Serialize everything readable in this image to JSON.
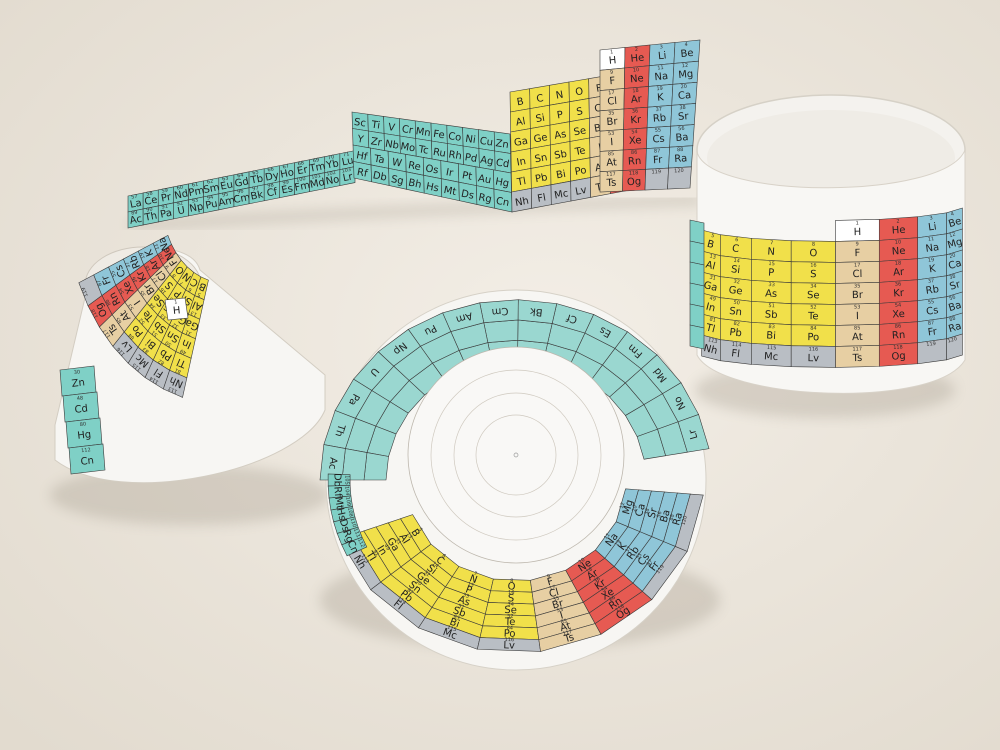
{
  "colors": {
    "table_surface": "#efe9df",
    "paper": "#f7f6f3",
    "paper_shadow": "#cfc8bd",
    "s_block_alkali": "#8fc6d8",
    "noble_red": "#e65a52",
    "noble_pink": "#ee9bb4",
    "p_block_yellow": "#f1e04a",
    "halogen_tan": "#e7cfa3",
    "transition_teal": "#7fd0c6",
    "lanthanide_teal": "#9ad7d0",
    "post_transition_gray": "#b9bec4",
    "hydrogen_white": "#ffffff"
  },
  "strip_top": {
    "lanthanides": [
      {
        "n": "57",
        "s": "La"
      },
      {
        "n": "58",
        "s": "Ce"
      },
      {
        "n": "59",
        "s": "Pr"
      },
      {
        "n": "60",
        "s": "Nd"
      },
      {
        "n": "61",
        "s": "Pm"
      },
      {
        "n": "62",
        "s": "Sm"
      },
      {
        "n": "63",
        "s": "Eu"
      },
      {
        "n": "64",
        "s": "Gd"
      },
      {
        "n": "65",
        "s": "Tb"
      },
      {
        "n": "66",
        "s": "Dy"
      },
      {
        "n": "67",
        "s": "Ho"
      },
      {
        "n": "68",
        "s": "Er"
      },
      {
        "n": "69",
        "s": "Tm"
      },
      {
        "n": "70",
        "s": "Yb"
      },
      {
        "n": "71",
        "s": "Lu"
      }
    ],
    "actinides": [
      {
        "n": "89",
        "s": "Ac"
      },
      {
        "n": "90",
        "s": "Th"
      },
      {
        "n": "91",
        "s": "Pa"
      },
      {
        "n": "92",
        "s": "U"
      },
      {
        "n": "93",
        "s": "Np"
      },
      {
        "n": "94",
        "s": "Pu"
      },
      {
        "n": "95",
        "s": "Am"
      },
      {
        "n": "96",
        "s": "Cm"
      },
      {
        "n": "97",
        "s": "Bk"
      },
      {
        "n": "98",
        "s": "Cf"
      },
      {
        "n": "99",
        "s": "Es"
      },
      {
        "n": "100",
        "s": "Fm"
      },
      {
        "n": "101",
        "s": "Md"
      },
      {
        "n": "102",
        "s": "No"
      },
      {
        "n": "103",
        "s": "Lr"
      }
    ],
    "transition_rows": [
      [
        "Sc",
        "Ti",
        "V",
        "Cr",
        "Mn",
        "Fe",
        "Co",
        "Ni",
        "Cu",
        "Zn"
      ],
      [
        "Y",
        "Zr",
        "Nb",
        "Mo",
        "Tc",
        "Ru",
        "Rh",
        "Pd",
        "Ag",
        "Cd"
      ],
      [
        "Hf",
        "Ta",
        "W",
        "Re",
        "Os",
        "Ir",
        "Pt",
        "Au",
        "Hg"
      ],
      [
        "Rf",
        "Db",
        "Sg",
        "Bh",
        "Hs",
        "Mt",
        "Ds",
        "Rg",
        "Cn"
      ]
    ],
    "p_block_rows": [
      [
        "B",
        "C",
        "N",
        "O",
        "F",
        "Ne"
      ],
      [
        "Al",
        "Si",
        "P",
        "S",
        "Cl",
        "Ar"
      ],
      [
        "Ga",
        "Ge",
        "As",
        "Se",
        "Br",
        "Kr"
      ],
      [
        "In",
        "Sn",
        "Sb",
        "Te",
        "I",
        "Xe"
      ],
      [
        "Tl",
        "Pb",
        "Bi",
        "Po",
        "At",
        "Rn"
      ],
      [
        "Nh",
        "Fl",
        "Mc",
        "Lv",
        "Ts",
        "Og"
      ]
    ],
    "s_block_column": [
      {
        "n": "1",
        "s": "H"
      },
      {
        "n": "2",
        "s": "He"
      },
      {
        "n": "3",
        "s": "Li"
      },
      {
        "n": "4",
        "s": "Be"
      },
      {
        "n": "10",
        "s": "Ne"
      },
      {
        "n": "11",
        "s": "Na"
      },
      {
        "n": "12",
        "s": "Mg"
      },
      {
        "n": "18",
        "s": "Ar"
      },
      {
        "n": "19",
        "s": "K"
      },
      {
        "n": "20",
        "s": "Ca"
      },
      {
        "n": "36",
        "s": "Kr"
      },
      {
        "n": "37",
        "s": "Rb"
      },
      {
        "n": "38",
        "s": "Sr"
      },
      {
        "n": "54",
        "s": "Xe"
      },
      {
        "n": "55",
        "s": "Cs"
      },
      {
        "n": "56",
        "s": "Ba"
      },
      {
        "n": "86",
        "s": "Rn"
      },
      {
        "n": "87",
        "s": "Fr"
      },
      {
        "n": "88",
        "s": "Ra"
      },
      {
        "n": "118",
        "s": "Og"
      },
      {
        "n": "119",
        "s": ""
      },
      {
        "n": "120",
        "s": ""
      }
    ]
  },
  "cylinder_right": {
    "rows": [
      [
        {
          "n": "",
          "s": ""
        },
        {
          "n": "",
          "s": ""
        },
        {
          "n": "",
          "s": ""
        },
        {
          "n": "",
          "s": ""
        },
        {
          "n": "1",
          "s": "H"
        },
        {
          "n": "2",
          "s": "He"
        },
        {
          "n": "3",
          "s": "Li"
        },
        {
          "n": "4",
          "s": "Be"
        }
      ],
      [
        {
          "n": "5",
          "s": "B"
        },
        {
          "n": "6",
          "s": "C"
        },
        {
          "n": "7",
          "s": "N"
        },
        {
          "n": "8",
          "s": "O"
        },
        {
          "n": "9",
          "s": "F"
        },
        {
          "n": "10",
          "s": "Ne"
        },
        {
          "n": "11",
          "s": "Na"
        },
        {
          "n": "12",
          "s": "Mg"
        }
      ],
      [
        {
          "n": "13",
          "s": "Al"
        },
        {
          "n": "14",
          "s": "Si"
        },
        {
          "n": "15",
          "s": "P"
        },
        {
          "n": "16",
          "s": "S"
        },
        {
          "n": "17",
          "s": "Cl"
        },
        {
          "n": "18",
          "s": "Ar"
        },
        {
          "n": "19",
          "s": "K"
        },
        {
          "n": "20",
          "s": "Ca"
        }
      ],
      [
        {
          "n": "31",
          "s": "Ga"
        },
        {
          "n": "32",
          "s": "Ge"
        },
        {
          "n": "33",
          "s": "As"
        },
        {
          "n": "34",
          "s": "Se"
        },
        {
          "n": "35",
          "s": "Br"
        },
        {
          "n": "36",
          "s": "Kr"
        },
        {
          "n": "37",
          "s": "Rb"
        },
        {
          "n": "38",
          "s": "Sr"
        }
      ],
      [
        {
          "n": "49",
          "s": "In"
        },
        {
          "n": "50",
          "s": "Sn"
        },
        {
          "n": "51",
          "s": "Sb"
        },
        {
          "n": "52",
          "s": "Te"
        },
        {
          "n": "53",
          "s": "I"
        },
        {
          "n": "54",
          "s": "Xe"
        },
        {
          "n": "55",
          "s": "Cs"
        },
        {
          "n": "56",
          "s": "Ba"
        }
      ],
      [
        {
          "n": "81",
          "s": "Tl"
        },
        {
          "n": "82",
          "s": "Pb"
        },
        {
          "n": "83",
          "s": "Bi"
        },
        {
          "n": "84",
          "s": "Po"
        },
        {
          "n": "85",
          "s": "At"
        },
        {
          "n": "86",
          "s": "Rn"
        },
        {
          "n": "87",
          "s": "Fr"
        },
        {
          "n": "88",
          "s": "Ra"
        }
      ],
      [
        {
          "n": "113",
          "s": "Nh"
        },
        {
          "n": "114",
          "s": "Fl"
        },
        {
          "n": "115",
          "s": "Mc"
        },
        {
          "n": "116",
          "s": "Lv"
        },
        {
          "n": "117",
          "s": "Ts"
        },
        {
          "n": "118",
          "s": "Og"
        },
        {
          "n": "119",
          "s": ""
        },
        {
          "n": "120",
          "s": ""
        }
      ]
    ]
  },
  "cone_left": {
    "rows": [
      [
        {
          "n": "5",
          "s": "B"
        },
        {
          "n": "6",
          "s": "C"
        },
        {
          "n": "7",
          "s": "N"
        },
        {
          "n": "8",
          "s": "O"
        },
        {
          "n": "9",
          "s": "F"
        },
        {
          "n": "10",
          "s": "Ne"
        },
        {
          "n": "11",
          "s": "Na"
        }
      ],
      [
        {
          "n": "13",
          "s": "Al"
        },
        {
          "n": "14",
          "s": "Si"
        },
        {
          "n": "15",
          "s": "P"
        },
        {
          "n": "16",
          "s": "S"
        },
        {
          "n": "17",
          "s": "Cl"
        },
        {
          "n": "18",
          "s": "Ar"
        },
        {
          "n": "19",
          "s": "K"
        }
      ],
      [
        {
          "n": "31",
          "s": "Ga"
        },
        {
          "n": "32",
          "s": "Ge"
        },
        {
          "n": "33",
          "s": "As"
        },
        {
          "n": "34",
          "s": "Se"
        },
        {
          "n": "35",
          "s": "Br"
        },
        {
          "n": "36",
          "s": "Kr"
        },
        {
          "n": "37",
          "s": "Rb"
        }
      ],
      [
        {
          "n": "49",
          "s": "In"
        },
        {
          "n": "50",
          "s": "Sn"
        },
        {
          "n": "51",
          "s": "Sb"
        },
        {
          "n": "52",
          "s": "Te"
        },
        {
          "n": "53",
          "s": "I"
        },
        {
          "n": "54",
          "s": "Xe"
        },
        {
          "n": "55",
          "s": "Cs"
        }
      ],
      [
        {
          "n": "81",
          "s": "Tl"
        },
        {
          "n": "82",
          "s": "Pb"
        },
        {
          "n": "83",
          "s": "Bi"
        },
        {
          "n": "84",
          "s": "Po"
        },
        {
          "n": "85",
          "s": "At"
        },
        {
          "n": "86",
          "s": "Rn"
        },
        {
          "n": "87",
          "s": "Fr"
        }
      ],
      [
        {
          "n": "113",
          "s": "Nh"
        },
        {
          "n": "114",
          "s": "Fl"
        },
        {
          "n": "115",
          "s": "Mc"
        },
        {
          "n": "116",
          "s": "Lv"
        },
        {
          "n": "117",
          "s": "Ts"
        },
        {
          "n": "118",
          "s": "Og"
        },
        {
          "n": "119",
          "s": ""
        }
      ]
    ],
    "left_cells": [
      {
        "n": "30",
        "s": "Zn"
      },
      {
        "n": "48",
        "s": "Cd"
      },
      {
        "n": "80",
        "s": "Hg"
      },
      {
        "n": "112",
        "s": "Cn"
      }
    ]
  },
  "disk_center": {
    "bottom_rows": [
      [
        {
          "n": "5",
          "s": "B"
        },
        {
          "n": "6",
          "s": "C"
        },
        {
          "n": "7",
          "s": "N"
        },
        {
          "n": "8",
          "s": "O"
        },
        {
          "n": "9",
          "s": "F"
        },
        {
          "n": "10",
          "s": "Ne"
        },
        {
          "n": "11",
          "s": "Na"
        },
        {
          "n": "12",
          "s": "Mg"
        }
      ],
      [
        {
          "n": "13",
          "s": "Al"
        },
        {
          "n": "14",
          "s": "Si"
        },
        {
          "n": "15",
          "s": "P"
        },
        {
          "n": "16",
          "s": "S"
        },
        {
          "n": "17",
          "s": "Cl"
        },
        {
          "n": "18",
          "s": "Ar"
        },
        {
          "n": "19",
          "s": "K"
        },
        {
          "n": "20",
          "s": "Ca"
        }
      ],
      [
        {
          "n": "31",
          "s": "Ga"
        },
        {
          "n": "32",
          "s": "Ge"
        },
        {
          "n": "33",
          "s": "As"
        },
        {
          "n": "34",
          "s": "Se"
        },
        {
          "n": "35",
          "s": "Br"
        },
        {
          "n": "36",
          "s": "Kr"
        },
        {
          "n": "37",
          "s": "Rb"
        },
        {
          "n": "38",
          "s": "Sr"
        }
      ],
      [
        {
          "n": "49",
          "s": "In"
        },
        {
          "n": "50",
          "s": "Sn"
        },
        {
          "n": "51",
          "s": "Sb"
        },
        {
          "n": "52",
          "s": "Te"
        },
        {
          "n": "53",
          "s": "I"
        },
        {
          "n": "54",
          "s": "Xe"
        },
        {
          "n": "55",
          "s": "Cs"
        },
        {
          "n": "56",
          "s": "Ba"
        }
      ],
      [
        {
          "n": "81",
          "s": "Tl"
        },
        {
          "n": "82",
          "s": "Pb"
        },
        {
          "n": "83",
          "s": "Bi"
        },
        {
          "n": "84",
          "s": "Po"
        },
        {
          "n": "85",
          "s": "At"
        },
        {
          "n": "86",
          "s": "Rn"
        },
        {
          "n": "87",
          "s": "Fr"
        },
        {
          "n": "88",
          "s": "Ra"
        }
      ],
      [
        {
          "n": "113",
          "s": "Nh"
        },
        {
          "n": "114",
          "s": "Fl"
        },
        {
          "n": "115",
          "s": "Mc"
        },
        {
          "n": "116",
          "s": "Lv"
        },
        {
          "n": "117",
          "s": "Ts"
        },
        {
          "n": "118",
          "s": "Og"
        },
        {
          "n": "119",
          "s": ""
        },
        {
          "n": "120",
          "s": ""
        }
      ]
    ],
    "top_ring": [
      {
        "n": "103",
        "s": "Lr"
      },
      {
        "n": "102",
        "s": "No"
      },
      {
        "n": "101",
        "s": "Md"
      },
      {
        "n": "100",
        "s": "Fm"
      },
      {
        "n": "99",
        "s": "Es"
      },
      {
        "n": "98",
        "s": "Cf"
      },
      {
        "n": "97",
        "s": "Bk"
      },
      {
        "n": "96",
        "s": "Cm"
      },
      {
        "n": "95",
        "s": "Am"
      },
      {
        "n": "94",
        "s": "Pu"
      },
      {
        "n": "93",
        "s": "Np"
      },
      {
        "n": "92",
        "s": "U"
      },
      {
        "n": "91",
        "s": "Pa"
      },
      {
        "n": "90",
        "s": "Th"
      },
      {
        "n": "89",
        "s": "Ac"
      }
    ],
    "left_ring": [
      {
        "n": "105",
        "s": "Db"
      },
      {
        "n": "104",
        "s": "Rf"
      },
      {
        "n": "109",
        "s": "Mt"
      },
      {
        "n": "108",
        "s": "Hs"
      },
      {
        "n": "110",
        "s": "Ds"
      },
      {
        "n": "111",
        "s": "Rg"
      },
      {
        "n": "112",
        "s": "Cn"
      }
    ],
    "hydrogen": {
      "n": "1",
      "s": "H"
    }
  }
}
